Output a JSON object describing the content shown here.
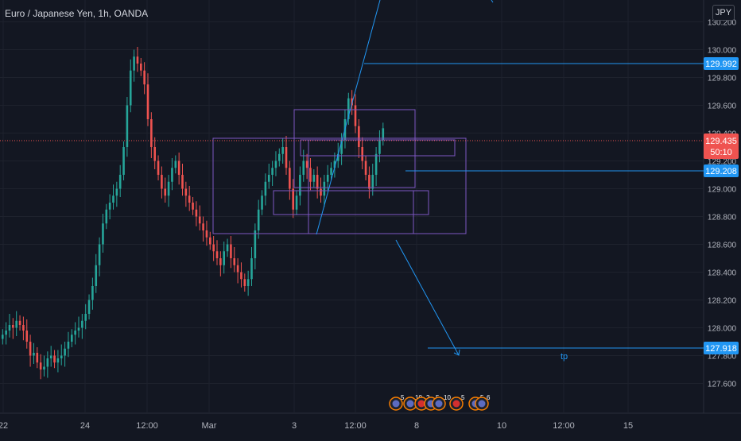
{
  "header": {
    "title": "Euro / Japanese Yen, 1h, OANDA",
    "currency_button": "JPY"
  },
  "price_axis": {
    "ticks": [
      "130.200",
      "130.000",
      "129.800",
      "129.600",
      "129.400",
      "129.200",
      "129.000",
      "128.800",
      "128.600",
      "128.400",
      "128.200",
      "128.000",
      "127.800",
      "127.600"
    ]
  },
  "time_axis": {
    "ticks": [
      "22",
      "24",
      "12:00",
      "Mar",
      "3",
      "12:00",
      "8",
      "10",
      "12:00",
      "15"
    ]
  },
  "price_tags": {
    "level_high": "129.992",
    "current_price": "129.435",
    "countdown": "50:10",
    "level_mid": "129.208",
    "level_target": "127.918"
  },
  "annotations": {
    "tp_label": "tp"
  },
  "ideas_markers": [
    {
      "count": "5"
    },
    {
      "count": "10"
    },
    {
      "count": "2"
    },
    {
      "count": "5"
    },
    {
      "count": "10"
    },
    {
      "count": "5"
    },
    {
      "count": "5"
    },
    {
      "count": "6"
    }
  ],
  "colors": {
    "background": "#131722",
    "up_candle": "#26a69a",
    "down_candle": "#ef5350",
    "drawing_line": "#2196f3",
    "rectangle": "#7e57c2",
    "price_tag": "#2196f3",
    "current_tag": "#ef5350"
  },
  "chart_data": {
    "type": "candlestick",
    "symbol": "EUR/JPY",
    "timeframe": "1h",
    "ylim": [
      127.5,
      130.3
    ],
    "close": [
      127.95,
      127.98,
      128.02,
      128.0,
      128.05,
      128.02,
      127.98,
      127.9,
      127.8,
      127.82,
      127.75,
      127.7,
      127.72,
      127.78,
      127.8,
      127.75,
      127.78,
      127.8,
      127.85,
      127.9,
      127.95,
      127.98,
      128.0,
      128.05,
      128.1,
      128.2,
      128.3,
      128.45,
      128.6,
      128.75,
      128.85,
      128.9,
      128.95,
      129.0,
      129.1,
      129.3,
      129.6,
      129.85,
      129.95,
      129.9,
      129.85,
      129.75,
      129.5,
      129.3,
      129.2,
      129.1,
      129.0,
      128.95,
      129.05,
      129.15,
      129.2,
      129.1,
      129.0,
      128.95,
      128.9,
      128.85,
      128.8,
      128.75,
      128.7,
      128.65,
      128.6,
      128.55,
      128.5,
      128.45,
      128.55,
      128.6,
      128.5,
      128.45,
      128.4,
      128.35,
      128.3,
      128.35,
      128.5,
      128.7,
      128.85,
      128.95,
      129.05,
      129.1,
      129.15,
      129.2,
      129.25,
      129.3,
      129.15,
      129.0,
      128.85,
      128.95,
      129.1,
      129.2,
      129.15,
      129.05,
      129.1,
      129.0,
      128.95,
      129.05,
      129.1,
      129.15,
      129.2,
      129.25,
      129.35,
      129.5,
      129.65,
      129.6,
      129.45,
      129.3,
      129.2,
      129.1,
      129.0,
      129.1,
      129.25,
      129.35,
      129.435
    ]
  }
}
